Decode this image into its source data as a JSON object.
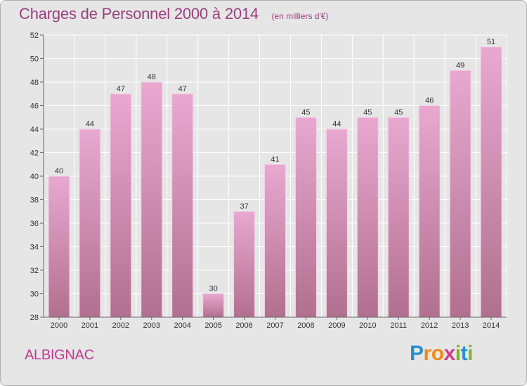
{
  "chart_data": {
    "type": "bar",
    "title": "Charges de Personnel 2000 à 2014",
    "subtitle": "(en milliers d'€)",
    "categories": [
      "2000",
      "2001",
      "2002",
      "2003",
      "2004",
      "2005",
      "2006",
      "2007",
      "2008",
      "2009",
      "2010",
      "2011",
      "2012",
      "2013",
      "2014"
    ],
    "values": [
      40,
      44,
      47,
      48,
      47,
      30,
      37,
      41,
      45,
      44,
      45,
      45,
      46,
      49,
      51
    ],
    "ylim": [
      28,
      52
    ],
    "yticks": [
      28,
      30,
      32,
      34,
      36,
      38,
      40,
      42,
      44,
      46,
      48,
      50,
      52
    ],
    "xlabel": "",
    "ylabel": "",
    "grid": true,
    "data_labels": true
  },
  "place_name": "ALBIGNAC",
  "brand": {
    "letters": [
      "P",
      "r",
      "o",
      "x",
      "i",
      "t",
      "i"
    ],
    "letter_colors": [
      "#2a8fd0",
      "#f08a1c",
      "#f08a1c",
      "#d33a8a",
      "#7ab828",
      "#2a8fd0",
      "#7ab828"
    ]
  },
  "colors": {
    "bar_top": "#e8a8d0",
    "bar_bottom": "#b2708f",
    "title": "#9a3f7c",
    "background": "#e6e6e6"
  }
}
